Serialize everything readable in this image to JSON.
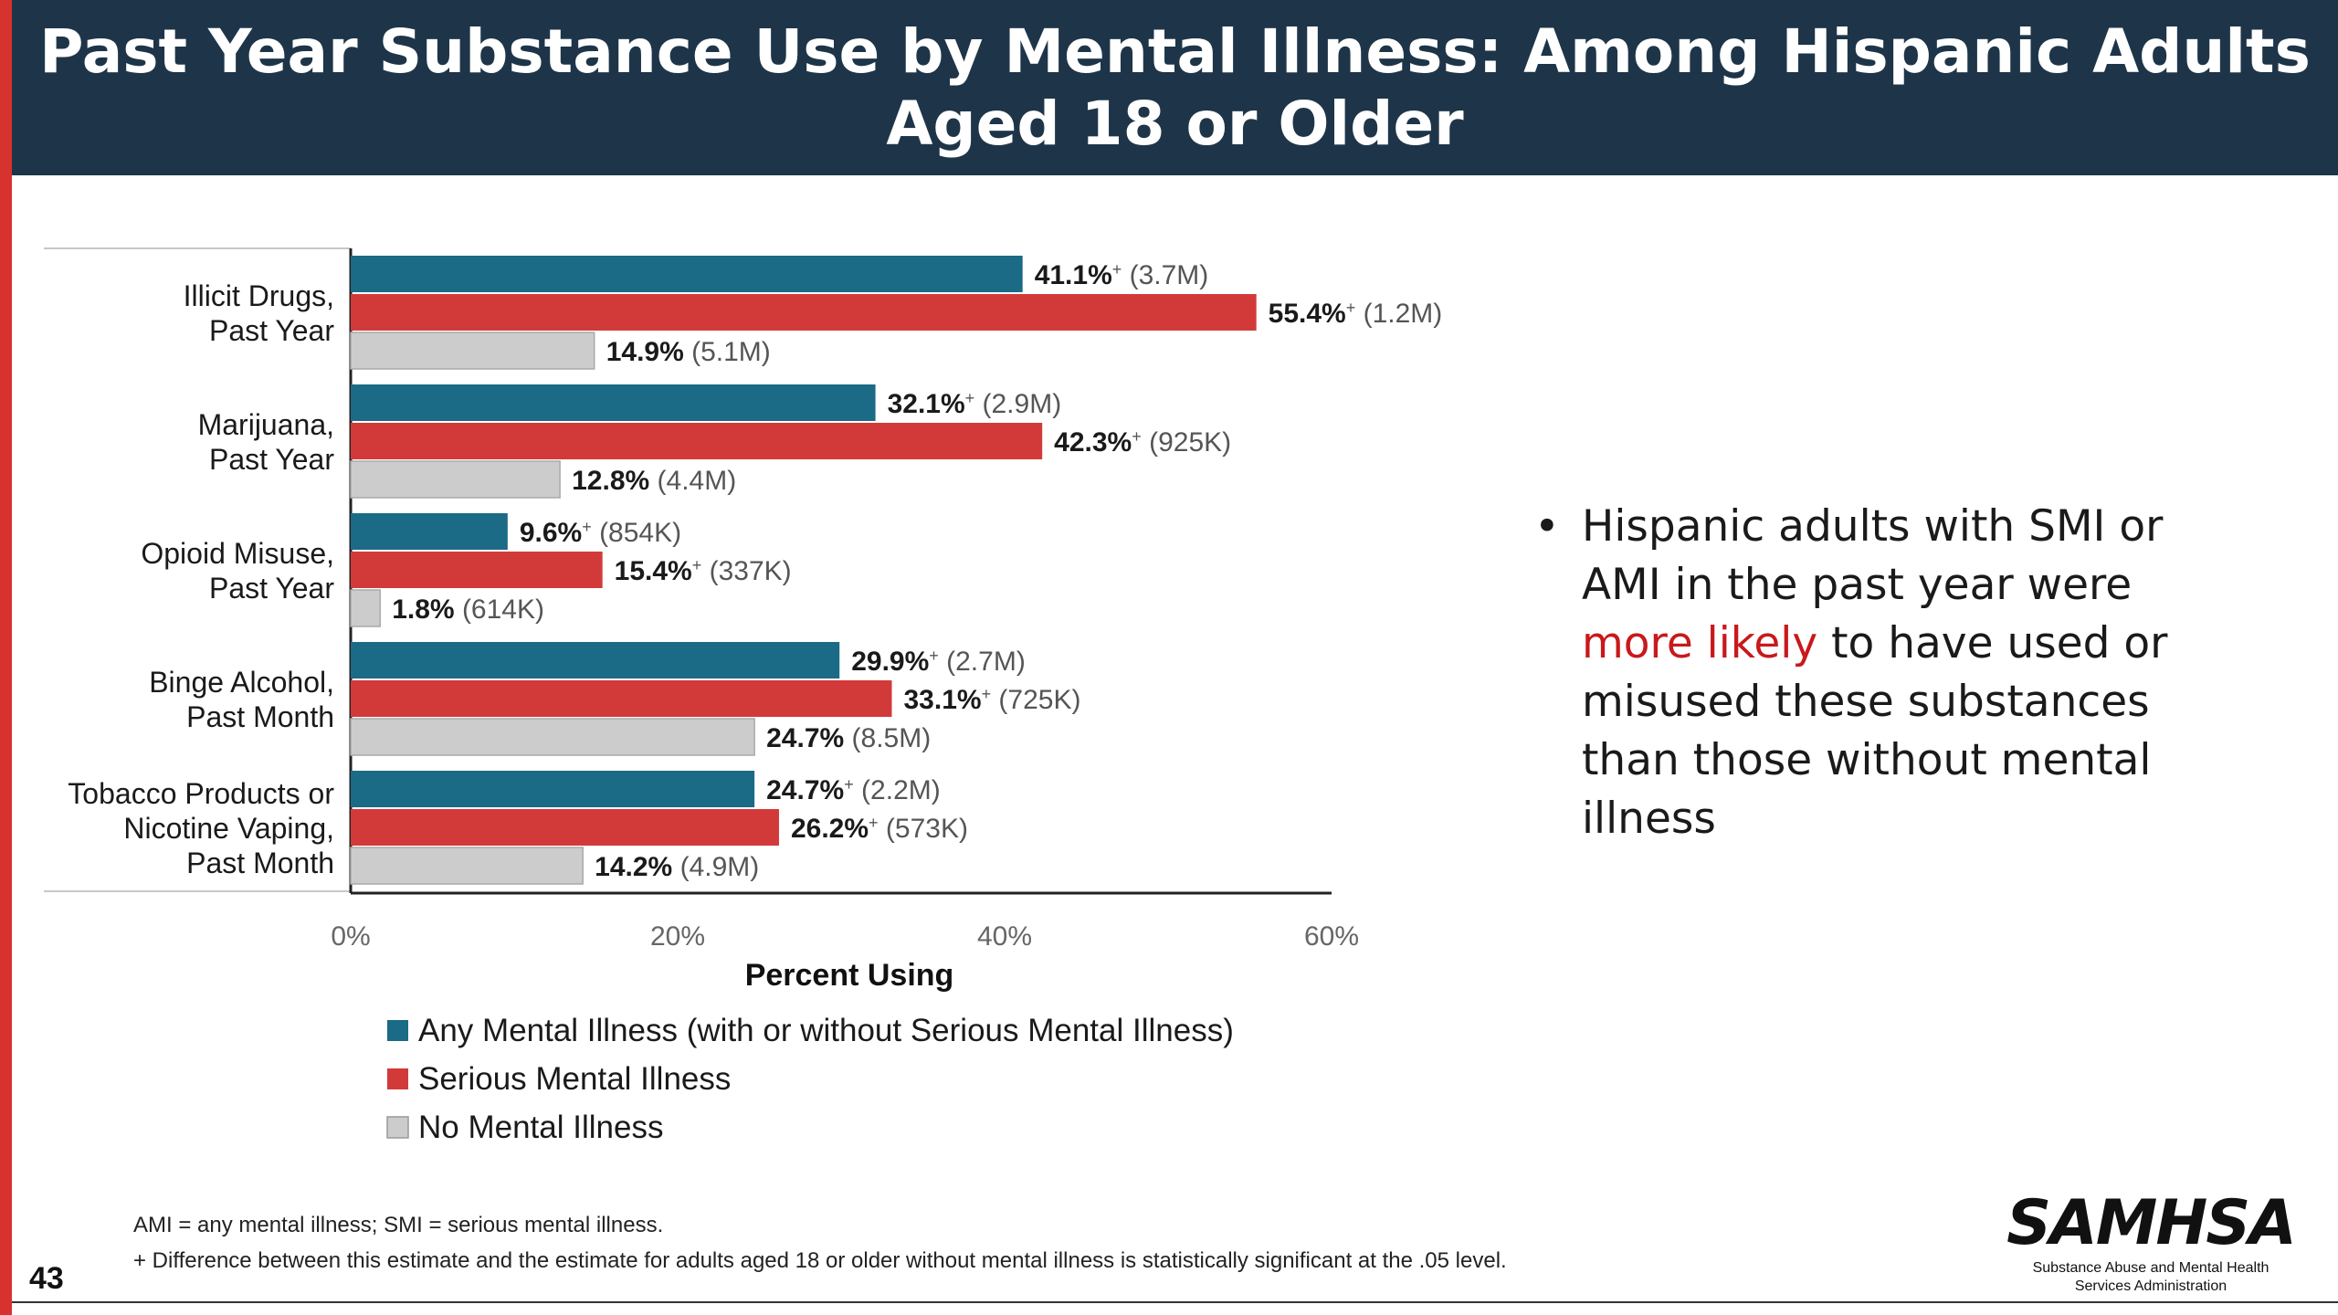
{
  "slide": {
    "title_line1": "Past Year Substance Use by Mental Illness: Among Hispanic Adults",
    "title_line2": "Aged 18 or Older",
    "page_number": "43",
    "bullet": {
      "before": "Hispanic adults with SMI or AMI in the past year were ",
      "emphasis": "more likely",
      "after": " to have used or misused these substances than those without mental illness"
    },
    "footnote_1": "AMI = any mental illness; SMI = serious mental illness.",
    "footnote_2": "+ Difference between this estimate and the estimate for adults aged 18 or older without mental illness is statistically significant at the .05 level.",
    "logo": {
      "wordmark": "SAMHSA",
      "line1": "Substance Abuse and Mental Health",
      "line2": "Services Administration"
    },
    "colors": {
      "title_bar": "#1e3549",
      "accent_red": "#d8322f",
      "emphasis_red": "#c8191c"
    }
  },
  "chart_data": {
    "type": "bar",
    "orientation": "horizontal",
    "title": "",
    "xlabel": "Percent Using",
    "ylabel": "",
    "xlim": [
      0,
      60
    ],
    "xticks": [
      "0%",
      "20%",
      "40%",
      "60%"
    ],
    "grid": false,
    "legend_position": "bottom",
    "categories": [
      [
        "Illicit Drugs,",
        "Past Year"
      ],
      [
        "Marijuana,",
        "Past Year"
      ],
      [
        "Opioid Misuse,",
        "Past Year"
      ],
      [
        "Binge Alcohol,",
        "Past Month"
      ],
      [
        "Tobacco Products or",
        "Nicotine Vaping,",
        "Past Month"
      ]
    ],
    "series": [
      {
        "name": "Any Mental Illness (with or without Serious Mental Illness)",
        "color": "#1b6a86",
        "values": [
          41.1,
          32.1,
          9.6,
          29.9,
          24.7
        ],
        "significant": [
          true,
          true,
          true,
          true,
          true
        ],
        "counts": [
          "(3.7M)",
          "(2.9M)",
          "(854K)",
          "(2.7M)",
          "(2.2M)"
        ]
      },
      {
        "name": "Serious Mental Illness",
        "color": "#d23a39",
        "values": [
          55.4,
          42.3,
          15.4,
          33.1,
          26.2
        ],
        "significant": [
          true,
          true,
          true,
          true,
          true
        ],
        "counts": [
          "(1.2M)",
          "(925K)",
          "(337K)",
          "(725K)",
          "(573K)"
        ]
      },
      {
        "name": "No Mental Illness",
        "color": "#cccccc",
        "values": [
          14.9,
          12.8,
          1.8,
          24.7,
          14.2
        ],
        "significant": [
          false,
          false,
          false,
          false,
          false
        ],
        "counts": [
          "(5.1M)",
          "(4.4M)",
          "(614K)",
          "(8.5M)",
          "(4.9M)"
        ]
      }
    ]
  }
}
